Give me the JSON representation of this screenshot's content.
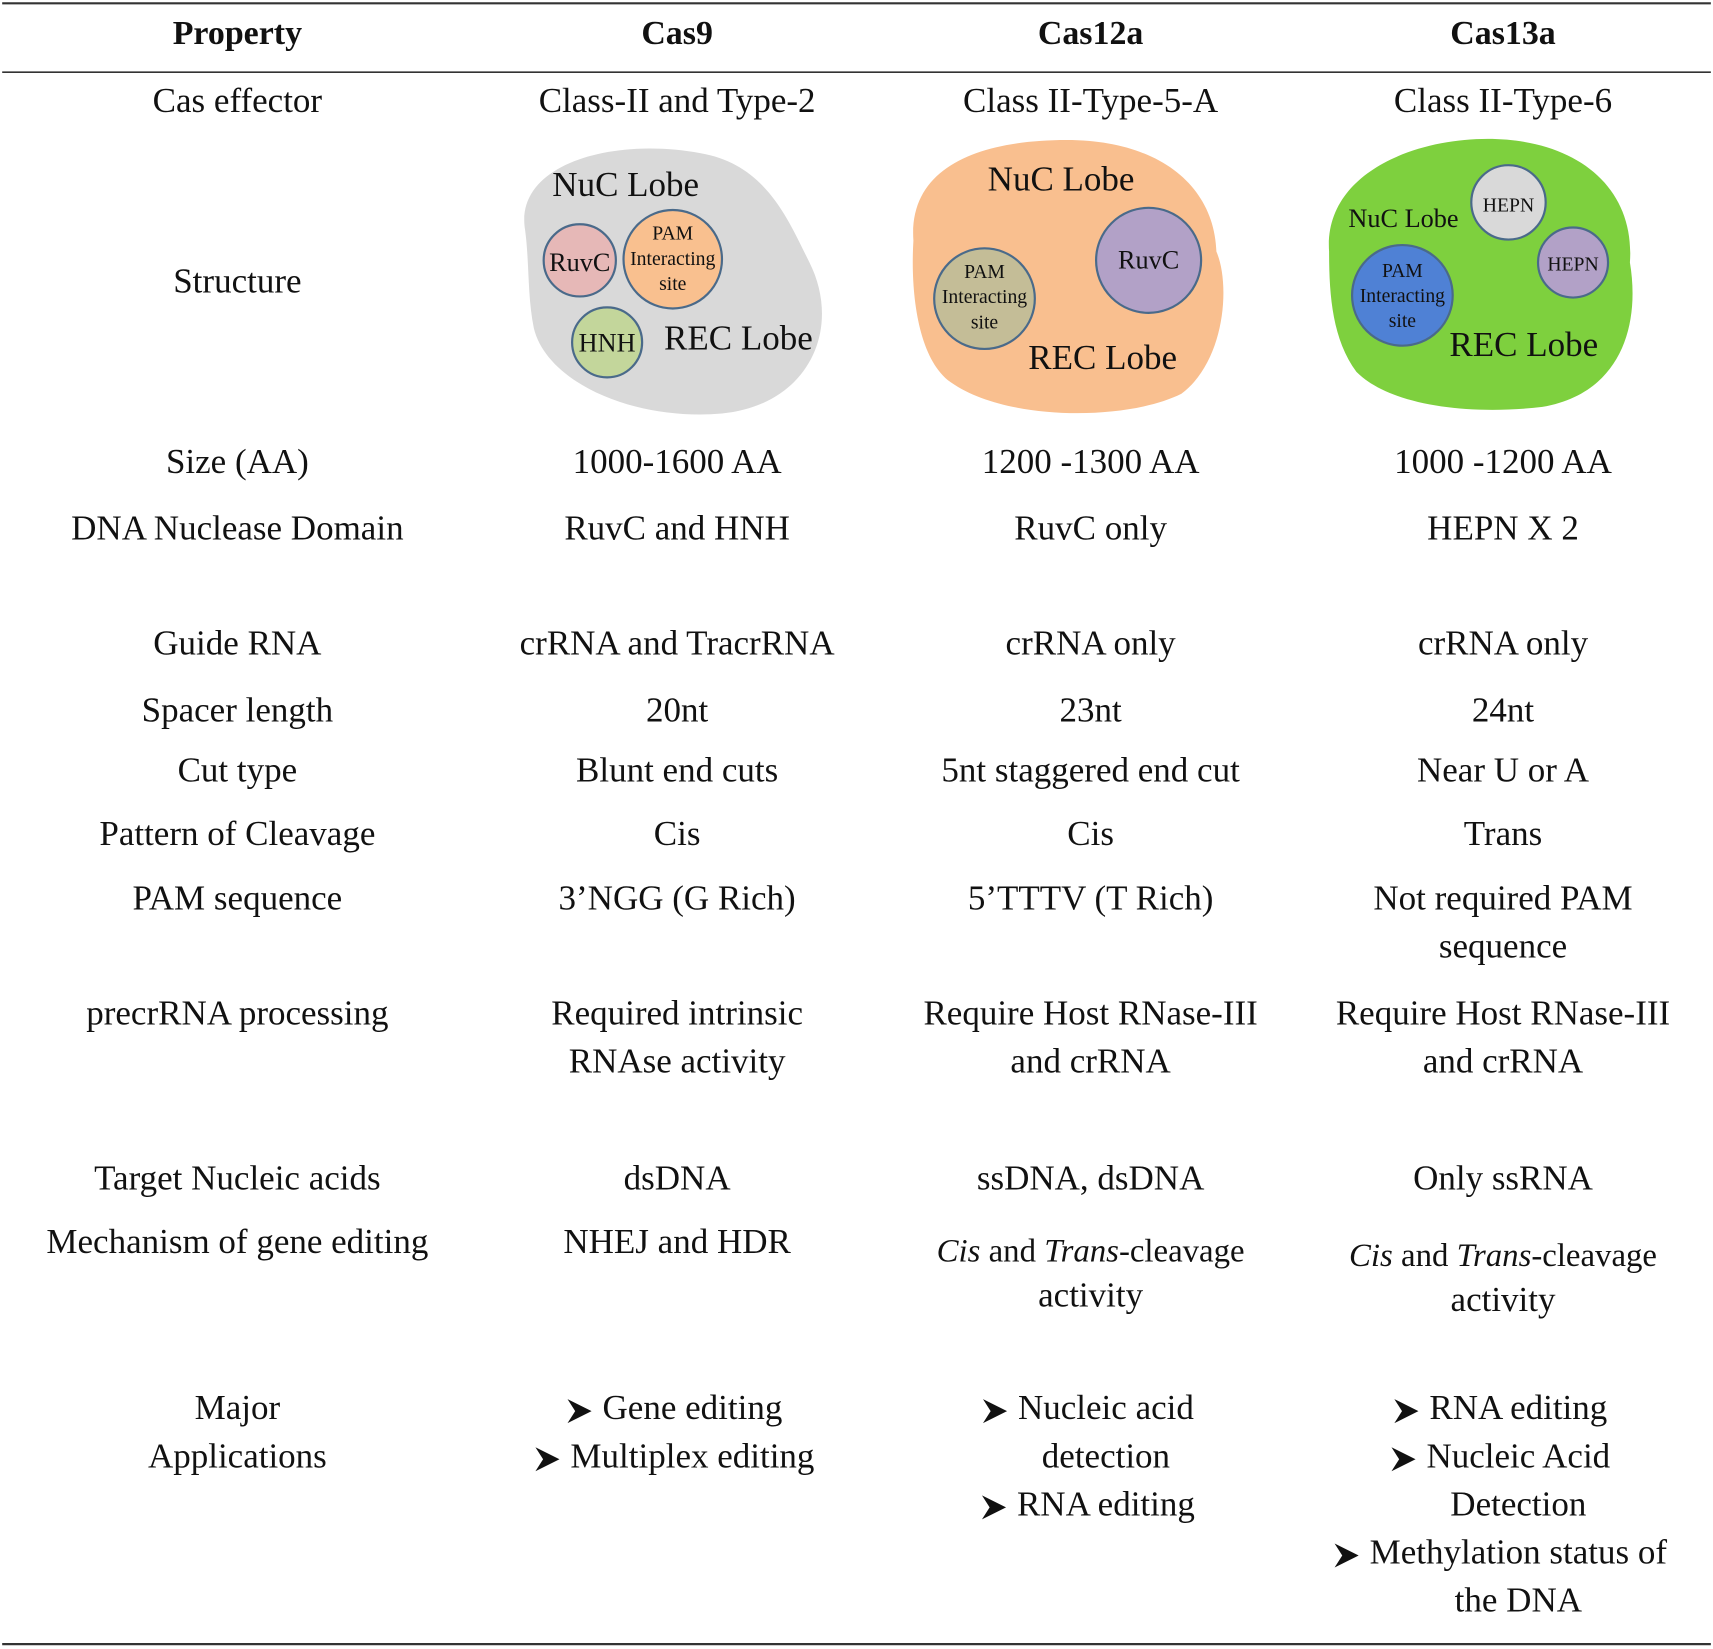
{
  "table": {
    "header": [
      "Property",
      "Cas9",
      "Cas12a",
      "Cas13a"
    ],
    "rows": [
      {
        "property": "Cas effector",
        "values": [
          "Class-II and Type-2",
          "Class II-Type-5-A",
          "Class II-Type-6"
        ]
      },
      {
        "property": "Structure",
        "values": [
          {
            "labels": [
              "NuC Lobe",
              "RuvC",
              [
                "PAM",
                "Interacting",
                "site"
              ],
              "HNH",
              "REC Lobe"
            ]
          },
          {
            "labels": [
              "NuC Lobe",
              [
                "PAM",
                "Interacting",
                "site"
              ],
              "RuvC",
              "REC Lobe"
            ]
          },
          {
            "labels": [
              "NuC Lobe",
              "HEPN",
              "HEPN",
              [
                "PAM",
                "Interacting",
                "site"
              ],
              "REC Lobe"
            ]
          }
        ]
      },
      {
        "property": "Size (AA)",
        "values": [
          "1000-1600 AA",
          "1200 -1300 AA",
          "1000 -1200 AA"
        ]
      },
      {
        "property": "DNA Nuclease Domain",
        "values": [
          "RuvC and HNH",
          "RuvC only",
          "HEPN X 2"
        ]
      },
      {
        "property": "Guide RNA",
        "values": [
          "crRNA and TracrRNA",
          "crRNA only",
          "crRNA only"
        ]
      },
      {
        "property": "Spacer length",
        "values": [
          "20nt",
          "23nt",
          "24nt"
        ]
      },
      {
        "property": "Cut type",
        "values": [
          "Blunt end cuts",
          "5nt staggered end cut",
          "Near U or A"
        ]
      },
      {
        "property": "Pattern of Cleavage",
        "values": [
          "Cis",
          "Cis",
          "Trans"
        ]
      },
      {
        "property": "PAM sequence",
        "values": [
          "3’NGG (G Rich)",
          "5’TTTV (T Rich)",
          [
            "Not required PAM",
            "sequence"
          ]
        ]
      },
      {
        "property": "precrRNA processing",
        "values": [
          [
            "Required intrinsic",
            "RNAse activity"
          ],
          [
            "Require Host RNase-III",
            "and crRNA"
          ],
          [
            "Require Host RNase-III",
            "and crRNA"
          ]
        ]
      },
      {
        "property": "Target Nucleic acids",
        "values": [
          "dsDNA",
          "ssDNA,   dsDNA",
          "Only ssRNA"
        ]
      },
      {
        "property": "Mechanism of gene editing",
        "values": [
          "NHEJ and HDR",
          [
            [
              {
                "text": "Cis",
                "italic": true
              },
              {
                "text": " and "
              },
              {
                "text": "Trans",
                "italic": true
              },
              {
                "text": "-cleavage"
              }
            ],
            "activity"
          ],
          [
            [
              {
                "text": "Cis",
                "italic": true
              },
              {
                "text": " and "
              },
              {
                "text": "Trans",
                "italic": true
              },
              {
                "text": "-cleavage"
              }
            ],
            "activity"
          ]
        ]
      },
      {
        "property": [
          "Major",
          "Applications"
        ],
        "values": [
          {
            "items": [
              [
                "Gene editing"
              ],
              [
                "Multiplex editing"
              ]
            ]
          },
          {
            "items": [
              [
                "Nucleic acid",
                "detection"
              ],
              [
                "RNA editing"
              ]
            ]
          },
          {
            "items": [
              [
                "RNA editing"
              ],
              [
                "Nucleic Acid",
                "Detection"
              ],
              [
                "Methylation status of",
                "the DNA"
              ]
            ]
          }
        ]
      }
    ]
  }
}
